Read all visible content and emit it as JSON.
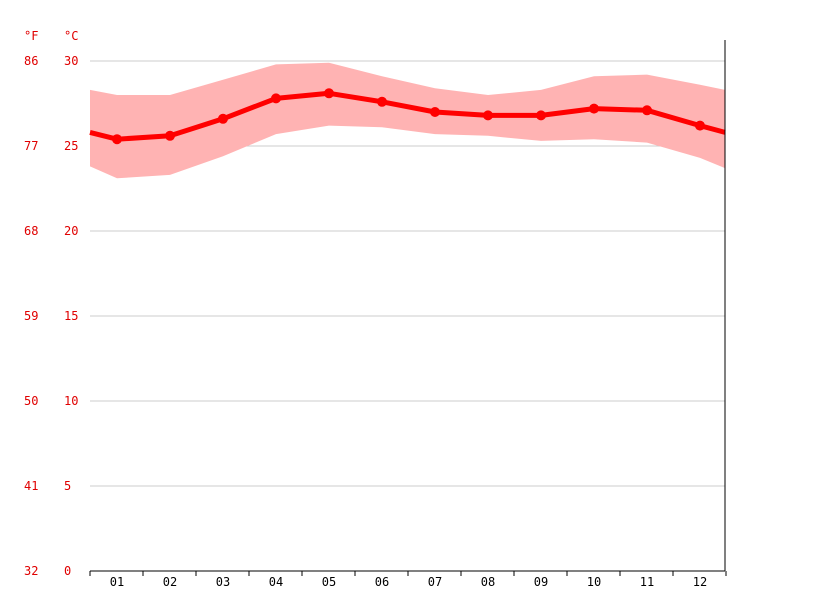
{
  "chart_data": {
    "type": "line",
    "title": "",
    "xlabel": "",
    "ylabel": "",
    "y_unit_left_label": "°F",
    "y_unit_right_label": "°C",
    "categories": [
      "01",
      "02",
      "03",
      "04",
      "05",
      "06",
      "07",
      "08",
      "09",
      "10",
      "11",
      "12"
    ],
    "y_ticks_c": [
      0,
      5,
      10,
      15,
      20,
      25,
      30
    ],
    "y_ticks_f": [
      32,
      41,
      50,
      59,
      68,
      77,
      86
    ],
    "ylim": [
      0,
      31
    ],
    "grid": true,
    "series": [
      {
        "values": [
          25.4,
          25.6,
          26.6,
          27.8,
          28.1,
          27.6,
          27.0,
          26.8,
          26.8,
          27.2,
          27.1,
          26.2
        ],
        "color": "#ff0000"
      }
    ],
    "band": {
      "min": [
        23.1,
        23.3,
        24.4,
        25.7,
        26.2,
        26.1,
        25.7,
        25.6,
        25.3,
        25.4,
        25.2,
        24.3
      ],
      "max": [
        28.0,
        28.0,
        28.9,
        29.8,
        29.9,
        29.1,
        28.4,
        28.0,
        28.3,
        29.1,
        29.2,
        28.6
      ],
      "color": "#ffb3b3"
    },
    "edge_values": {
      "start": {
        "value": 25.8,
        "min": 23.8,
        "max": 28.3
      },
      "end": {
        "value": 25.8,
        "min": 23.7,
        "max": 28.3
      }
    }
  }
}
